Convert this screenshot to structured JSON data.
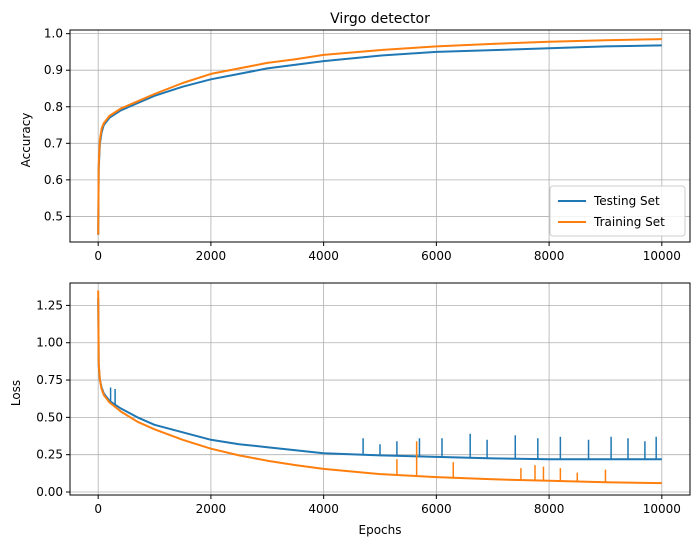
{
  "chart_data": [
    {
      "type": "line",
      "title": "Virgo detector",
      "xlabel": "",
      "ylabel": "Accuracy",
      "xlim": [
        -500,
        10500
      ],
      "ylim": [
        0.43,
        1.01
      ],
      "xticks": [
        0,
        2000,
        4000,
        6000,
        8000,
        10000
      ],
      "xtick_labels": [
        "0",
        "2000",
        "4000",
        "6000",
        "8000",
        "10000"
      ],
      "yticks": [
        0.5,
        0.6,
        0.7,
        0.8,
        0.9,
        1.0
      ],
      "ytick_labels": [
        "0.5",
        "0.6",
        "0.7",
        "0.8",
        "0.9",
        "1.0"
      ],
      "grid": true,
      "legend": "lower-right",
      "series": [
        {
          "name": "Testing Set",
          "color": "#1f77b4",
          "x": [
            0,
            10,
            30,
            60,
            100,
            200,
            400,
            700,
            1000,
            1500,
            2000,
            2500,
            3000,
            3500,
            4000,
            5000,
            6000,
            7000,
            8000,
            9000,
            10000
          ],
          "y": [
            0.45,
            0.63,
            0.7,
            0.73,
            0.75,
            0.77,
            0.79,
            0.81,
            0.83,
            0.855,
            0.875,
            0.89,
            0.905,
            0.915,
            0.925,
            0.94,
            0.95,
            0.955,
            0.96,
            0.965,
            0.968
          ]
        },
        {
          "name": "Training Set",
          "color": "#ff7f0e",
          "x": [
            0,
            10,
            30,
            60,
            100,
            200,
            400,
            700,
            1000,
            1500,
            2000,
            2500,
            3000,
            3500,
            4000,
            5000,
            6000,
            7000,
            8000,
            9000,
            10000
          ],
          "y": [
            0.45,
            0.64,
            0.71,
            0.74,
            0.755,
            0.775,
            0.795,
            0.815,
            0.835,
            0.865,
            0.89,
            0.905,
            0.92,
            0.93,
            0.942,
            0.955,
            0.965,
            0.972,
            0.978,
            0.982,
            0.985
          ]
        }
      ]
    },
    {
      "type": "line",
      "title": "",
      "xlabel": "Epochs",
      "ylabel": "Loss",
      "xlim": [
        -500,
        10500
      ],
      "ylim": [
        -0.02,
        1.4
      ],
      "xticks": [
        0,
        2000,
        4000,
        6000,
        8000,
        10000
      ],
      "xtick_labels": [
        "0",
        "2000",
        "4000",
        "6000",
        "8000",
        "10000"
      ],
      "yticks": [
        0.0,
        0.25,
        0.5,
        0.75,
        1.0,
        1.25
      ],
      "ytick_labels": [
        "0.00",
        "0.25",
        "0.50",
        "0.75",
        "1.00",
        "1.25"
      ],
      "grid": true,
      "series": [
        {
          "name": "Testing Set",
          "color": "#1f77b4",
          "x": [
            0,
            10,
            30,
            60,
            100,
            200,
            400,
            700,
            1000,
            1500,
            2000,
            2500,
            3000,
            3500,
            4000,
            5000,
            6000,
            7000,
            8000,
            9000,
            10000
          ],
          "y": [
            1.3,
            0.85,
            0.75,
            0.7,
            0.66,
            0.61,
            0.56,
            0.5,
            0.45,
            0.4,
            0.35,
            0.32,
            0.3,
            0.28,
            0.26,
            0.245,
            0.235,
            0.225,
            0.22,
            0.22,
            0.22
          ]
        },
        {
          "name": "Training Set",
          "color": "#ff7f0e",
          "x": [
            0,
            10,
            30,
            60,
            100,
            200,
            400,
            700,
            1000,
            1500,
            2000,
            2500,
            3000,
            3500,
            4000,
            5000,
            6000,
            7000,
            8000,
            9000,
            10000
          ],
          "y": [
            1.35,
            0.86,
            0.75,
            0.69,
            0.65,
            0.6,
            0.54,
            0.47,
            0.42,
            0.35,
            0.29,
            0.245,
            0.21,
            0.18,
            0.155,
            0.12,
            0.1,
            0.085,
            0.075,
            0.065,
            0.06
          ]
        }
      ],
      "spikes": [
        {
          "series": "Testing Set",
          "x": [
            220,
            300,
            4700,
            5000,
            5300,
            5700,
            6100,
            6600,
            6900,
            7400,
            7800,
            8200,
            8700,
            9100,
            9400,
            9700,
            9900
          ],
          "y": [
            0.7,
            0.69,
            0.36,
            0.32,
            0.34,
            0.36,
            0.36,
            0.39,
            0.35,
            0.38,
            0.36,
            0.37,
            0.35,
            0.37,
            0.36,
            0.34,
            0.37
          ]
        },
        {
          "series": "Training Set",
          "x": [
            5300,
            5650,
            6300,
            7500,
            7750,
            7900,
            8200,
            8500,
            9000
          ],
          "y": [
            0.22,
            0.34,
            0.2,
            0.16,
            0.18,
            0.17,
            0.16,
            0.13,
            0.15
          ]
        }
      ]
    }
  ]
}
